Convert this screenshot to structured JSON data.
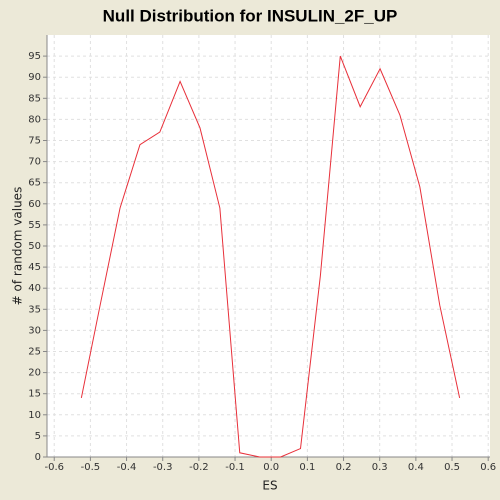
{
  "chart_data": {
    "type": "line",
    "title": "Null Distribution for INSULIN_2F_UP",
    "x_label": "ES",
    "y_label": "# of random values",
    "series": [
      {
        "color": "#e8303a",
        "x": [
          -0.525,
          -0.473,
          -0.418,
          -0.363,
          -0.308,
          -0.252,
          -0.197,
          -0.142,
          -0.087,
          -0.032,
          0.026,
          0.081,
          0.136,
          0.191,
          0.246,
          0.301,
          0.356,
          0.411,
          0.466,
          0.521
        ],
        "values": [
          14,
          36,
          59,
          74,
          77,
          89,
          78,
          59,
          1,
          0,
          0,
          2,
          43,
          95,
          83,
          92,
          81,
          64,
          36,
          14
        ]
      }
    ],
    "xlim": [
      -0.62,
      0.605
    ],
    "ylim": [
      0,
      100
    ],
    "xticks": [
      -0.6,
      -0.5,
      -0.4,
      -0.3,
      -0.2,
      -0.1,
      {
        "value": 0,
        "label": "0.0"
      },
      0.1,
      0.2,
      0.3,
      0.4,
      0.5,
      0.6
    ],
    "yticks": [
      0,
      5,
      10,
      15,
      20,
      25,
      30,
      35,
      40,
      45,
      50,
      55,
      60,
      65,
      70,
      75,
      80,
      85,
      90,
      95
    ],
    "grid": true
  }
}
